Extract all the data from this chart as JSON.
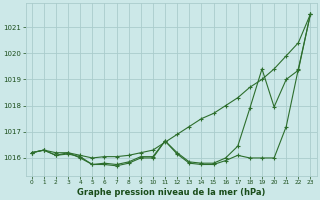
{
  "x": [
    0,
    1,
    2,
    3,
    4,
    5,
    6,
    7,
    8,
    9,
    10,
    11,
    12,
    13,
    14,
    15,
    16,
    17,
    18,
    19,
    20,
    21,
    22,
    23
  ],
  "line1": [
    1016.2,
    1016.3,
    1016.1,
    1016.15,
    1016.05,
    1015.75,
    1015.75,
    1015.7,
    1015.8,
    1016.0,
    1016.0,
    1016.65,
    1016.15,
    1015.8,
    1015.75,
    1015.75,
    1015.9,
    1016.1,
    1016.0,
    1016.0,
    1016.0,
    1017.2,
    1019.4,
    1021.5
  ],
  "line2": [
    1016.2,
    1016.3,
    1016.2,
    1016.2,
    1016.1,
    1016.0,
    1016.05,
    1016.05,
    1016.1,
    1016.2,
    1016.3,
    1016.6,
    1016.9,
    1017.2,
    1017.5,
    1017.7,
    1018.0,
    1018.3,
    1018.7,
    1019.0,
    1019.4,
    1019.9,
    1020.4,
    1021.5
  ],
  "line3": [
    1016.2,
    1016.3,
    1016.1,
    1016.2,
    1016.0,
    1015.75,
    1015.8,
    1015.75,
    1015.85,
    1016.05,
    1016.05,
    1016.65,
    1016.2,
    1015.85,
    1015.8,
    1015.8,
    1016.0,
    1016.45,
    1017.9,
    1019.4,
    1017.95,
    1019.0,
    1019.35,
    1021.5
  ],
  "bg_color": "#cce8e8",
  "grid_color": "#aacccc",
  "line_color": "#2d6e2d",
  "xlabel": "Graphe pression niveau de la mer (hPa)",
  "xlabel_color": "#1a4d1a",
  "tick_labels": [
    "0",
    "1",
    "2",
    "3",
    "4",
    "5",
    "6",
    "7",
    "8",
    "9",
    "10",
    "11",
    "12",
    "13",
    "14",
    "15",
    "16",
    "17",
    "18",
    "19",
    "20",
    "21",
    "22",
    "23"
  ],
  "ylim": [
    1015.3,
    1021.9
  ],
  "yticks": [
    1016,
    1017,
    1018,
    1019,
    1020,
    1021
  ],
  "font_color": "#1a4d1a"
}
